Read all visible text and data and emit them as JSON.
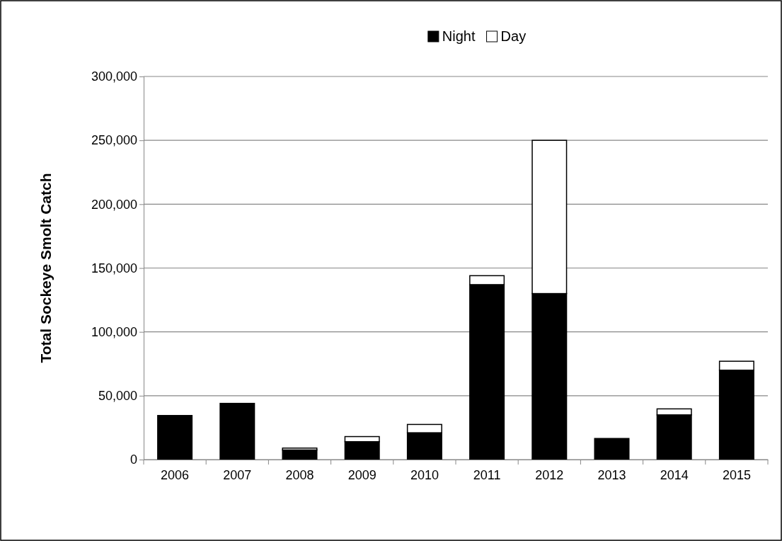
{
  "chart_data": {
    "type": "bar",
    "stacked": true,
    "ylabel": "Total Sockeye Smolt Catch",
    "categories": [
      "2006",
      "2007",
      "2008",
      "2009",
      "2010",
      "2011",
      "2012",
      "2013",
      "2014",
      "2015"
    ],
    "series": [
      {
        "name": "Night",
        "color": "#000000",
        "values": [
          34500,
          44000,
          7500,
          14000,
          21000,
          137000,
          130000,
          16500,
          35000,
          70000
        ]
      },
      {
        "name": "Day",
        "color": "#ffffff",
        "values": [
          0,
          0,
          1500,
          4000,
          6500,
          7000,
          120000,
          0,
          4700,
          7000
        ]
      }
    ],
    "ylim": [
      0,
      300000
    ],
    "yticks": [
      {
        "value": 0,
        "label": "0"
      },
      {
        "value": 50000,
        "label": "50,000"
      },
      {
        "value": 100000,
        "label": "100,000"
      },
      {
        "value": 150000,
        "label": "150,000"
      },
      {
        "value": 200000,
        "label": "200,000"
      },
      {
        "value": 250000,
        "label": "250,000"
      },
      {
        "value": 300000,
        "label": "300,000"
      }
    ],
    "grid": "y",
    "legend": "top"
  }
}
